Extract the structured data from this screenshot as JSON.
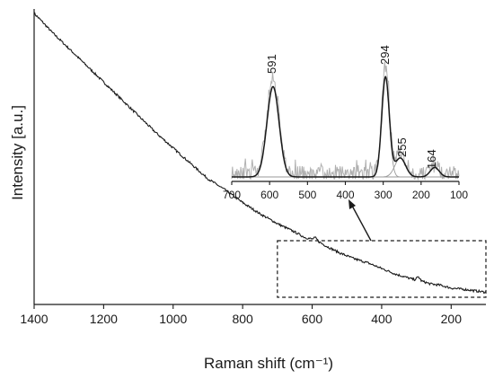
{
  "chart_data": [
    {
      "type": "line",
      "xlabel": "Raman shift (cm⁻¹)",
      "ylabel": "Intensity [a.u.]",
      "xlim": [
        1400,
        100
      ],
      "x_reversed": true,
      "ylim": [
        0,
        1
      ],
      "y_ticks_shown": false,
      "x_ticks": [
        1400,
        1200,
        1000,
        800,
        600,
        400,
        200
      ],
      "x_tick_labels": [
        "1400",
        "1200",
        "1000",
        "800",
        "600",
        "400",
        "200"
      ],
      "series": [
        {
          "color": "#1a1a1a",
          "x": [
            1400,
            1380,
            1350,
            1300,
            1250,
            1200,
            1150,
            1100,
            1050,
            1000,
            950,
            900,
            850,
            800,
            750,
            700,
            650,
            620,
            600,
            591,
            580,
            560,
            520,
            480,
            440,
            400,
            360,
            320,
            305,
            294,
            285,
            260,
            230,
            200,
            160,
            130,
            100
          ],
          "y": [
            1.0,
            0.975,
            0.935,
            0.875,
            0.815,
            0.755,
            0.695,
            0.635,
            0.575,
            0.52,
            0.465,
            0.41,
            0.37,
            0.325,
            0.285,
            0.25,
            0.22,
            0.2,
            0.195,
            0.2,
            0.185,
            0.17,
            0.145,
            0.125,
            0.11,
            0.09,
            0.07,
            0.055,
            0.05,
            0.06,
            0.045,
            0.035,
            0.03,
            0.02,
            0.015,
            0.01,
            0.005
          ]
        }
      ],
      "highlight_box": {
        "x_range": [
          700,
          100
        ],
        "style": "dashed"
      }
    },
    {
      "type": "line",
      "role": "inset",
      "xlim": [
        700,
        100
      ],
      "x_reversed": true,
      "ylim": [
        0,
        1
      ],
      "x_ticks": [
        700,
        600,
        500,
        400,
        300,
        200,
        100
      ],
      "x_tick_labels": [
        "700",
        "600",
        "500",
        "400",
        "300",
        "200",
        "100"
      ],
      "peak_labels": [
        "591",
        "294",
        "255",
        "164"
      ],
      "peaks": [
        {
          "center": 591,
          "height": 0.86,
          "width": 16
        },
        {
          "center": 294,
          "height": 0.95,
          "width": 10
        },
        {
          "center": 255,
          "height": 0.18,
          "width": 14
        },
        {
          "center": 164,
          "height": 0.09,
          "width": 12
        }
      ],
      "raw_color": "#b0b0b0",
      "fit_color": "#1a1a1a",
      "component_color": "#9a9a9a"
    }
  ]
}
